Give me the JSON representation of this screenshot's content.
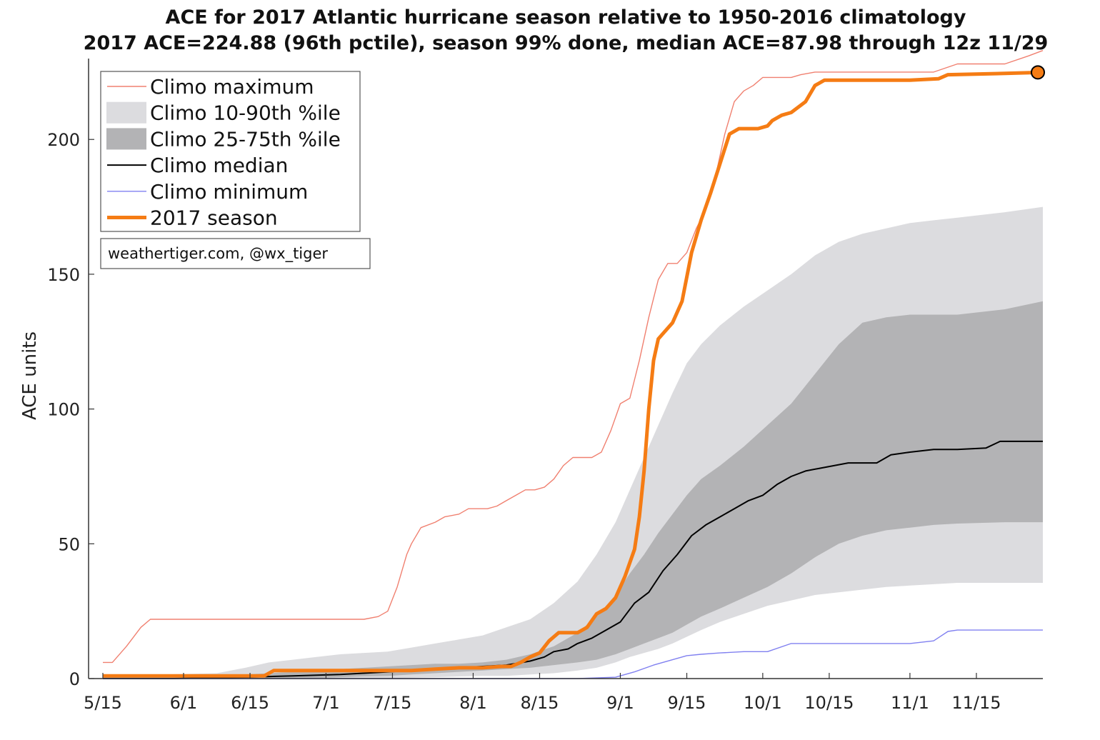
{
  "chart_data": {
    "type": "area",
    "title": "ACE for 2017 Atlantic hurricane season relative to 1950-2016 climatology",
    "subtitle": "2017 ACE=224.88 (96th pctile), season 99% done, median ACE=87.98 through 12z 11/29",
    "ylabel": "ACE units",
    "xlabel": "",
    "ylim": [
      0,
      230
    ],
    "x_range": [
      "5/15",
      "11/29"
    ],
    "x_ticks": [
      {
        "label": "5/15",
        "day": 0
      },
      {
        "label": "6/1",
        "day": 17
      },
      {
        "label": "6/15",
        "day": 31
      },
      {
        "label": "7/1",
        "day": 47
      },
      {
        "label": "7/15",
        "day": 61
      },
      {
        "label": "8/1",
        "day": 78
      },
      {
        "label": "8/15",
        "day": 92
      },
      {
        "label": "9/1",
        "day": 109
      },
      {
        "label": "9/15",
        "day": 123
      },
      {
        "label": "10/1",
        "day": 139
      },
      {
        "label": "10/15",
        "day": 153
      },
      {
        "label": "11/1",
        "day": 170
      },
      {
        "label": "11/15",
        "day": 184
      }
    ],
    "y_ticks": [
      0,
      50,
      100,
      150,
      200
    ],
    "colors": {
      "max": "#f08070",
      "band_10_90": "#dcdcdf",
      "band_25_75": "#b3b3b5",
      "median": "#000000",
      "min": "#8080f0",
      "season": "#f57c14",
      "end_marker": "#f57c14"
    },
    "band_10_90": {
      "x": [
        0,
        24,
        30,
        35,
        40,
        45,
        50,
        55,
        60,
        65,
        70,
        75,
        80,
        85,
        90,
        95,
        100,
        104,
        108,
        111,
        114,
        117,
        120,
        123,
        126,
        130,
        135,
        140,
        145,
        150,
        155,
        160,
        165,
        170,
        175,
        180,
        190,
        198
      ],
      "upper": [
        1,
        2,
        4,
        6,
        7,
        8,
        9,
        9.5,
        10,
        11.5,
        13,
        14.5,
        16,
        19,
        22,
        28,
        36,
        46,
        58,
        70,
        82,
        94,
        106,
        117,
        124,
        131,
        138,
        144,
        150,
        157,
        162,
        165,
        167,
        169,
        170,
        171,
        173,
        175
      ],
      "lower": [
        0,
        0,
        0,
        0,
        0,
        0,
        0,
        0,
        0,
        0.3,
        0.5,
        0.8,
        1,
        1,
        1.5,
        2,
        3,
        4,
        6,
        8,
        9.5,
        11,
        13,
        15.5,
        18,
        21,
        24,
        27,
        29,
        31,
        32,
        33,
        34,
        34.5,
        35,
        35.5,
        35.5,
        35.5
      ]
    },
    "band_25_75": {
      "x": [
        0,
        24,
        30,
        35,
        40,
        45,
        50,
        55,
        60,
        65,
        70,
        75,
        80,
        85,
        90,
        95,
        100,
        104,
        108,
        111,
        114,
        117,
        120,
        123,
        126,
        130,
        135,
        140,
        145,
        150,
        155,
        160,
        165,
        170,
        175,
        180,
        190,
        198
      ],
      "upper": [
        0.5,
        1,
        1.5,
        2,
        2.5,
        3,
        3.5,
        4,
        4.5,
        5,
        5.5,
        5.5,
        6,
        7,
        9,
        12,
        17,
        23,
        31,
        39,
        46,
        54,
        61,
        68,
        74,
        79,
        86,
        94,
        102,
        113,
        124,
        132,
        134,
        135,
        135,
        135,
        137,
        140
      ],
      "lower": [
        0,
        0,
        0,
        0,
        0,
        0.2,
        0.5,
        0.8,
        1,
        1.5,
        2,
        2.5,
        3,
        3.5,
        4,
        5,
        6,
        7,
        9,
        11,
        13,
        15,
        17,
        20,
        23,
        26,
        30,
        34,
        39,
        45,
        50,
        53,
        55,
        56,
        57,
        57.5,
        58,
        58
      ]
    },
    "series": [
      {
        "name": "Climo maximum",
        "x": [
          0,
          2,
          5,
          8,
          10,
          15,
          20,
          25,
          30,
          40,
          50,
          55,
          58,
          60,
          62,
          64,
          65,
          67,
          70,
          72,
          75,
          77,
          79,
          81,
          83,
          85,
          87,
          89,
          91,
          93,
          95,
          97,
          99,
          101,
          103,
          105,
          107,
          109,
          111,
          113,
          115,
          117,
          119,
          121,
          123,
          125,
          127,
          129,
          131,
          133,
          135,
          137,
          139,
          141,
          143,
          145,
          147,
          150,
          152,
          155,
          160,
          170,
          175,
          180,
          190,
          195,
          198
        ],
        "values": [
          6,
          6,
          12,
          19,
          22,
          22,
          22,
          22,
          22,
          22,
          22,
          22,
          23,
          25,
          34,
          46,
          50,
          56,
          58,
          60,
          61,
          63,
          63,
          63,
          64,
          66,
          68,
          70,
          70,
          71,
          74,
          79,
          82,
          82,
          82,
          84,
          92,
          102,
          104,
          118,
          134,
          148,
          154,
          154,
          158,
          167,
          174,
          186,
          202,
          214,
          218,
          220,
          223,
          223,
          223,
          223,
          224,
          225,
          225,
          225,
          225,
          225,
          225,
          228,
          228,
          231,
          233
        ]
      },
      {
        "name": "Climo median",
        "x": [
          0,
          15,
          30,
          40,
          50,
          55,
          60,
          65,
          70,
          75,
          80,
          85,
          90,
          93,
          95,
          98,
          100,
          103,
          106,
          109,
          112,
          115,
          118,
          121,
          124,
          127,
          130,
          133,
          136,
          139,
          142,
          145,
          148,
          151,
          154,
          157,
          160,
          163,
          166,
          170,
          175,
          180,
          186,
          189,
          198
        ],
        "values": [
          0,
          0,
          0.5,
          1,
          1.5,
          2,
          2.5,
          3,
          3.5,
          4,
          4.5,
          5,
          6.5,
          8,
          10,
          11,
          13,
          15,
          18,
          21,
          28,
          32,
          40,
          46,
          53,
          57,
          60,
          63,
          66,
          68,
          72,
          75,
          77,
          78,
          79,
          80,
          80,
          80,
          83,
          84,
          85,
          85,
          85.5,
          88,
          88
        ]
      },
      {
        "name": "Climo minimum",
        "x": [
          0,
          20,
          40,
          60,
          80,
          100,
          108,
          112,
          116,
          120,
          123,
          126,
          130,
          135,
          140,
          145,
          150,
          155,
          160,
          165,
          170,
          175,
          178,
          180,
          190,
          198
        ],
        "values": [
          0,
          0,
          0,
          0,
          0,
          0,
          0.5,
          2.5,
          5,
          7,
          8.5,
          9,
          9.5,
          10,
          10,
          13,
          13,
          13,
          13,
          13,
          13,
          14,
          17.5,
          18,
          18,
          18
        ]
      },
      {
        "name": "2017 season",
        "x": [
          0,
          20,
          34,
          36,
          40,
          50,
          60,
          65,
          70,
          75,
          80,
          84,
          86,
          88,
          90,
          92,
          94,
          96,
          98,
          100,
          102,
          104,
          106,
          108,
          110,
          112,
          113,
          114,
          115,
          116,
          117,
          118,
          120,
          122,
          124,
          126,
          128,
          130,
          132,
          134,
          136,
          138,
          140,
          141,
          143,
          145,
          148,
          150,
          152,
          154,
          160,
          170,
          176,
          178,
          190,
          198
        ],
        "values": [
          1,
          1,
          1,
          3,
          3,
          3,
          3,
          3,
          3.5,
          4,
          4,
          4.5,
          4.5,
          6,
          8,
          9.5,
          14,
          17,
          17,
          17,
          19,
          24,
          26,
          30,
          38,
          48,
          60,
          77,
          100,
          118,
          126,
          128,
          132,
          140,
          158,
          170,
          180,
          191,
          202,
          204,
          204,
          204,
          205,
          207,
          209,
          210,
          214,
          220,
          222,
          222,
          222,
          222,
          222.5,
          224,
          224.5,
          224.88
        ]
      }
    ],
    "legend": {
      "position": "top-left",
      "entries": [
        {
          "label": "Climo maximum",
          "kind": "line",
          "color": "#f08070"
        },
        {
          "label": "Climo 10-90th %ile",
          "kind": "patch",
          "color": "#dcdcdf"
        },
        {
          "label": "Climo 25-75th %ile",
          "kind": "patch",
          "color": "#b3b3b5"
        },
        {
          "label": "Climo median",
          "kind": "line",
          "color": "#000000"
        },
        {
          "label": "Climo minimum",
          "kind": "line",
          "color": "#8080f0"
        },
        {
          "label": "2017 season",
          "kind": "thick-line",
          "color": "#f57c14"
        }
      ]
    },
    "annotation": "weathertiger.com, @wx_tiger",
    "grid": false
  }
}
